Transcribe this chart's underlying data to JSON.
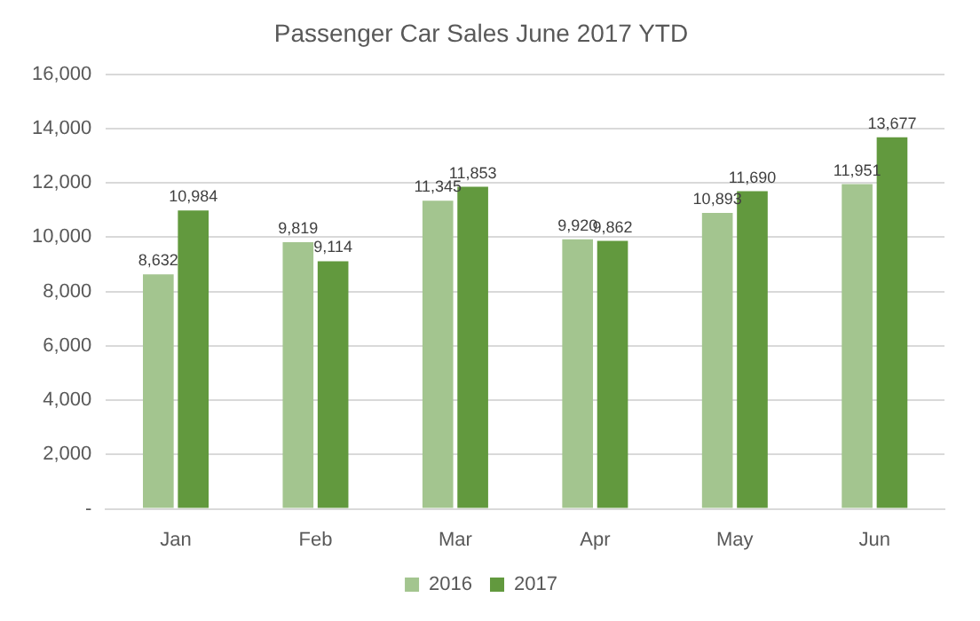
{
  "chart_data": {
    "type": "bar",
    "title": "Passenger Car Sales June 2017 YTD",
    "categories": [
      "Jan",
      "Feb",
      "Mar",
      "Apr",
      "May",
      "Jun"
    ],
    "series": [
      {
        "name": "2016",
        "color": "#a3c58f",
        "values": [
          8632,
          9819,
          11345,
          9920,
          10893,
          11951
        ],
        "value_labels": [
          "8,632",
          "9,819",
          "11,345",
          "9,920",
          "10,893",
          "11,951"
        ]
      },
      {
        "name": "2017",
        "color": "#62993e",
        "values": [
          10984,
          9114,
          11853,
          9862,
          11690,
          13677
        ],
        "value_labels": [
          "10,984",
          "9,114",
          "11,853",
          "9,862",
          "11,690",
          "13,677"
        ]
      }
    ],
    "ylim": [
      0,
      16000
    ],
    "yticks": [
      {
        "value": 0,
        "label": "-"
      },
      {
        "value": 2000,
        "label": "2,000"
      },
      {
        "value": 4000,
        "label": "4,000"
      },
      {
        "value": 6000,
        "label": "6,000"
      },
      {
        "value": 8000,
        "label": "8,000"
      },
      {
        "value": 10000,
        "label": "10,000"
      },
      {
        "value": 12000,
        "label": "12,000"
      },
      {
        "value": 14000,
        "label": "14,000"
      },
      {
        "value": 16000,
        "label": "16,000"
      }
    ],
    "grid": "y",
    "legend": "bottom"
  }
}
